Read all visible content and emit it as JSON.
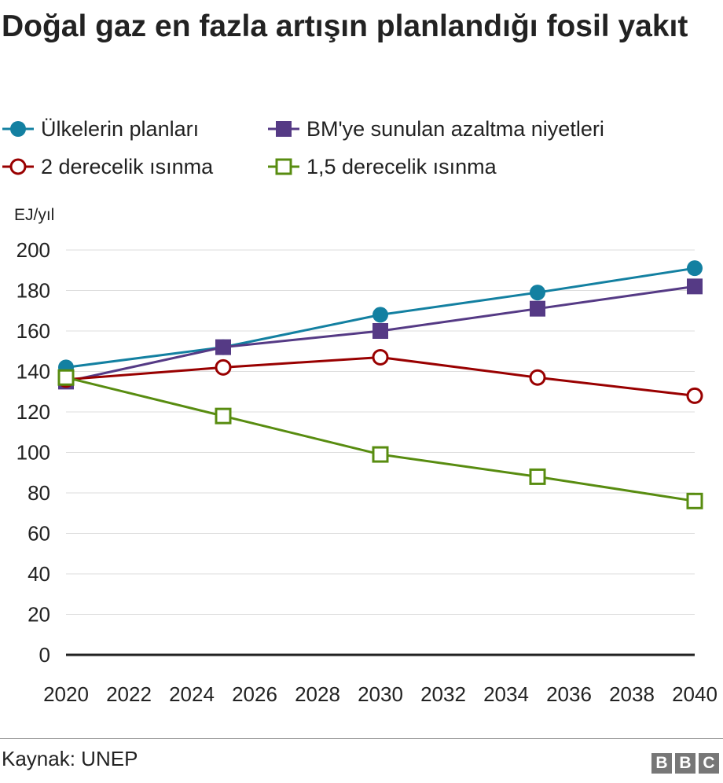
{
  "title": "Doğal gaz en fazla artışın planlandığı fosil yakıt",
  "source": "Kaynak: UNEP",
  "logo_letters": [
    "B",
    "B",
    "C"
  ],
  "chart_data": {
    "type": "line",
    "title": "Doğal gaz en fazla artışın planlandığı fosil yakıt",
    "ylabel": "EJ/yıl",
    "xlabel": "",
    "xlim": [
      2020,
      2040
    ],
    "ylim": [
      0,
      200
    ],
    "x_ticks": [
      2020,
      2022,
      2024,
      2026,
      2028,
      2030,
      2032,
      2034,
      2036,
      2038,
      2040
    ],
    "y_ticks": [
      0,
      20,
      40,
      60,
      80,
      100,
      120,
      140,
      160,
      180,
      200
    ],
    "grid": true,
    "legend_position": "top",
    "x": [
      2020,
      2025,
      2030,
      2035,
      2040
    ],
    "series": [
      {
        "name": "Ülkelerin planları",
        "values": [
          142,
          152,
          168,
          179,
          191
        ],
        "color": "#1380a1",
        "marker": "circle",
        "filled": true
      },
      {
        "name": "BM'ye sunulan azaltma niyetleri",
        "values": [
          135,
          152,
          160,
          171,
          182
        ],
        "color": "#553a85",
        "marker": "square",
        "filled": true
      },
      {
        "name": "2 derecelik ısınma",
        "values": [
          136,
          142,
          147,
          137,
          128
        ],
        "color": "#990000",
        "marker": "circle",
        "filled": false
      },
      {
        "name": "1,5 derecelik ısınma",
        "values": [
          137,
          118,
          99,
          88,
          76
        ],
        "color": "#588c10",
        "marker": "square",
        "filled": false
      }
    ]
  }
}
